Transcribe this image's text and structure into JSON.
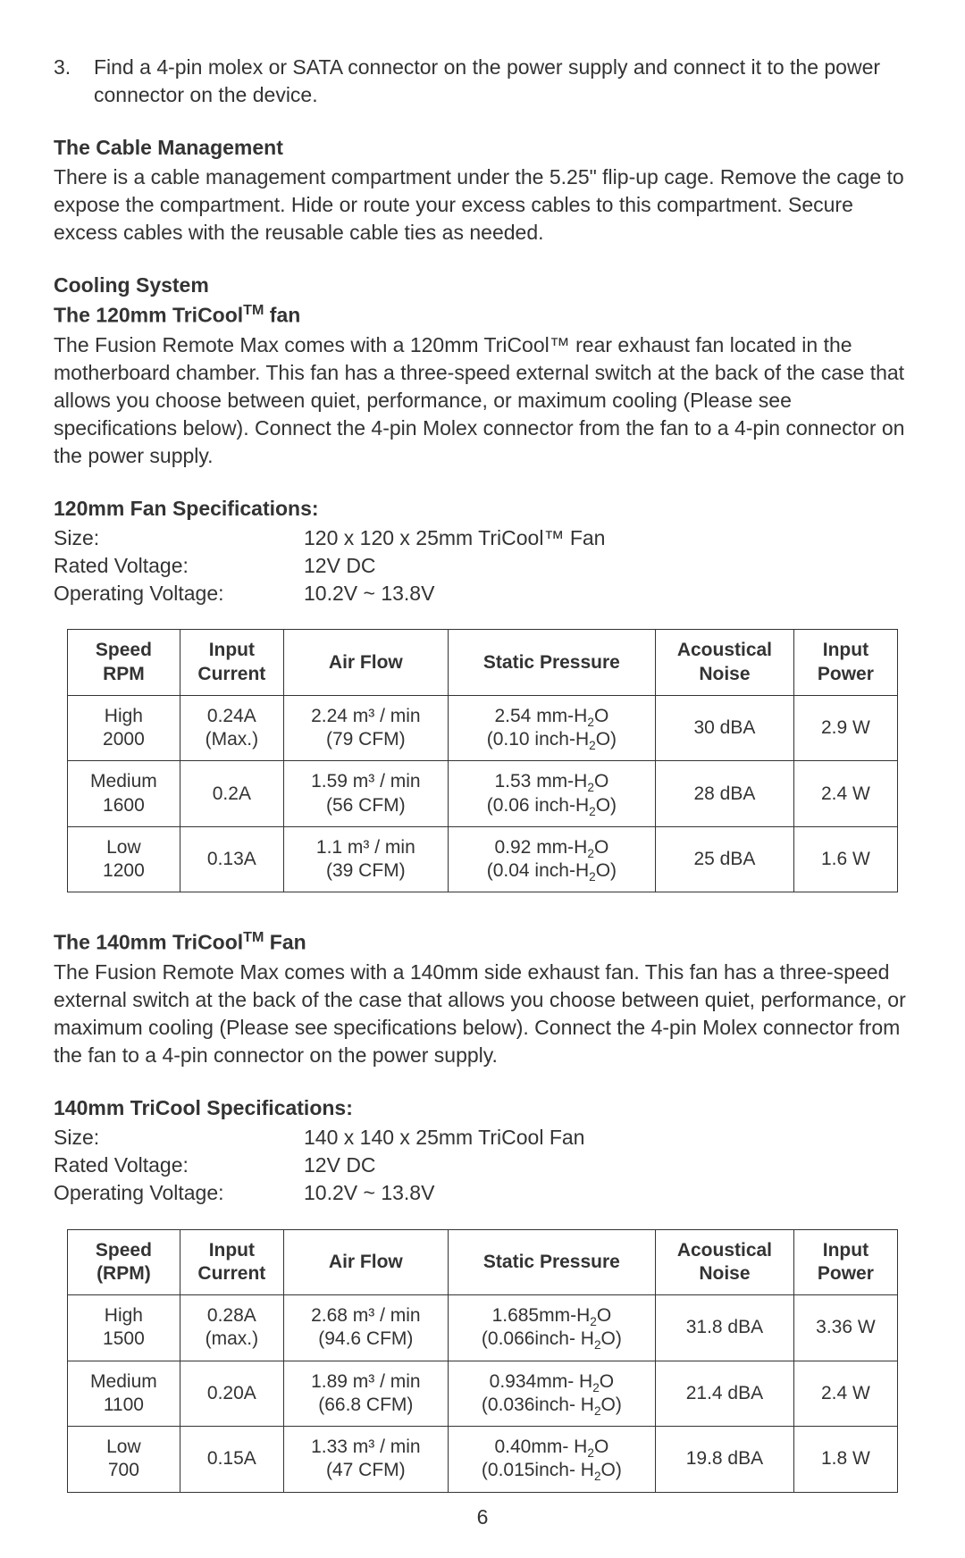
{
  "colors": {
    "text": "#333333",
    "background": "#ffffff",
    "border": "#333333"
  },
  "step3": {
    "number": "3.",
    "text": "Find a 4-pin molex or SATA connector on the power supply and connect it to the power connector on the device."
  },
  "cable": {
    "heading": "The Cable Management",
    "body": "There is a cable management compartment under the 5.25\" flip-up cage. Remove the cage to expose the compartment. Hide or route your excess cables to this compartment. Secure excess cables with the reusable cable ties as needed."
  },
  "cooling": {
    "heading": "Cooling System",
    "fan120": {
      "subheading_pre": "The 120mm TriCool",
      "tm": "TM",
      "subheading_post": " fan",
      "body": "The Fusion Remote Max comes with a 120mm TriCool™ rear exhaust fan located in the motherboard chamber. This fan has a three-speed external switch at the back of the case that allows you choose between quiet, performance, or maximum cooling (Please see specifications below). Connect the 4-pin Molex connector from the fan to a 4-pin connector on the power supply.",
      "spec_heading": "120mm Fan Specifications:",
      "specs": [
        {
          "label": "Size:",
          "value": "120 x 120 x 25mm TriCool™ Fan"
        },
        {
          "label": "Rated Voltage:",
          "value": "12V DC"
        },
        {
          "label": "Operating Voltage:",
          "value": "10.2V  ~ 13.8V"
        }
      ],
      "table": {
        "cols": [
          "Speed RPM",
          "Input Current",
          "Air Flow",
          "Static Pressure",
          "Acoustical Noise",
          "Input Power"
        ],
        "rows": [
          {
            "speed_l1": "High",
            "speed_l2": "2000",
            "current_l1": "0.24A",
            "current_l2": "(Max.)",
            "airflow_l1": "2.24 m³ / min",
            "airflow_l2": "(79 CFM)",
            "pressure_mm": "2.54 mm-H",
            "pressure_in": "(0.10 inch-H",
            "noise": "30 dBA",
            "power": "2.9 W"
          },
          {
            "speed_l1": "Medium",
            "speed_l2": "1600",
            "current_l1": "0.2A",
            "current_l2": "",
            "airflow_l1": "1.59 m³ / min",
            "airflow_l2": "(56 CFM)",
            "pressure_mm": "1.53 mm-H",
            "pressure_in": "(0.06 inch-H",
            "noise": "28 dBA",
            "power": "2.4 W"
          },
          {
            "speed_l1": "Low",
            "speed_l2": "1200",
            "current_l1": "0.13A",
            "current_l2": "",
            "airflow_l1": "1.1 m³ / min",
            "airflow_l2": "(39 CFM)",
            "pressure_mm": "0.92 mm-H",
            "pressure_in": "(0.04 inch-H",
            "noise": "25 dBA",
            "power": "1.6 W"
          }
        ]
      }
    },
    "fan140": {
      "subheading_pre": "The 140mm TriCool",
      "tm": "TM",
      "subheading_post": " Fan",
      "body": "The Fusion Remote Max comes with a 140mm side exhaust fan. This fan has a three-speed external switch at the back of the case that allows you choose between quiet, performance, or maximum cooling (Please see specifications below). Connect the 4-pin Molex connector from the fan to a 4-pin connector on the power supply.",
      "spec_heading": "140mm TriCool Specifications:",
      "specs": [
        {
          "label": "Size:",
          "value": "140 x 140 x 25mm TriCool Fan"
        },
        {
          "label": "Rated Voltage:",
          "value": "12V DC"
        },
        {
          "label": "Operating Voltage:",
          "value": "10.2V  ~ 13.8V"
        }
      ],
      "table": {
        "cols": [
          "Speed (RPM)",
          "Input Current",
          "Air Flow",
          "Static Pressure",
          "Acoustical Noise",
          "Input Power"
        ],
        "rows": [
          {
            "speed_l1": "High",
            "speed_l2": "1500",
            "current_l1": "0.28A",
            "current_l2": "(max.)",
            "airflow_l1": "2.68 m³ / min",
            "airflow_l2": "(94.6 CFM)",
            "pressure_mm": "1.685mm-H",
            "pressure_in": "(0.066inch- H",
            "noise": "31.8 dBA",
            "power": "3.36 W"
          },
          {
            "speed_l1": "Medium",
            "speed_l2": "1100",
            "current_l1": "0.20A",
            "current_l2": "",
            "airflow_l1": "1.89 m³ / min",
            "airflow_l2": "(66.8 CFM)",
            "pressure_mm": "0.934mm- H",
            "pressure_in": "(0.036inch- H",
            "noise": "21.4 dBA",
            "power": "2.4 W"
          },
          {
            "speed_l1": "Low",
            "speed_l2": "700",
            "current_l1": "0.15A",
            "current_l2": "",
            "airflow_l1": "1.33 m³ / min",
            "airflow_l2": "(47 CFM)",
            "pressure_mm": "0.40mm- H",
            "pressure_in": "(0.015inch- H",
            "noise": "19.8 dBA",
            "power": "1.8 W"
          }
        ]
      }
    }
  },
  "page_number": "6"
}
